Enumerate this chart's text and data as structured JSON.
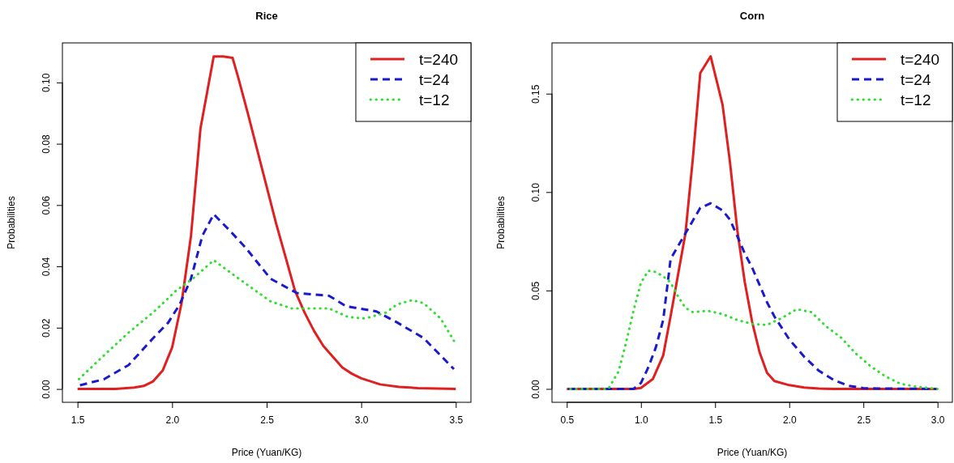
{
  "chart_data": [
    {
      "type": "line",
      "title": "Rice",
      "xlabel": "Price (Yuan/KG)",
      "ylabel": "Probabilities",
      "xlim": [
        1.42,
        3.58
      ],
      "ylim": [
        -0.00434,
        0.1129
      ],
      "xticks": [
        1.5,
        {
          "value": 2,
          "label": "2.0"
        },
        2.5,
        {
          "value": 3,
          "label": "3.0"
        },
        3.5
      ],
      "yticks": [
        {
          "value": 0,
          "label": "0.00"
        },
        {
          "value": 0.02,
          "label": "0.02"
        },
        {
          "value": 0.04,
          "label": "0.04"
        },
        {
          "value": 0.06,
          "label": "0.06"
        },
        {
          "value": 0.08,
          "label": "0.08"
        },
        {
          "value": 0.1,
          "label": "0.10"
        }
      ],
      "legend": "top right",
      "series": [
        {
          "name": "t=240",
          "color": "#e02020",
          "line_style": "solid",
          "x": [
            1.5,
            1.6,
            1.7,
            1.8,
            1.85,
            1.9,
            1.95,
            2.0,
            2.05,
            2.1,
            2.15,
            2.22,
            2.27,
            2.32,
            2.35,
            2.4,
            2.45,
            2.5,
            2.55,
            2.6,
            2.65,
            2.7,
            2.75,
            2.8,
            2.85,
            2.9,
            2.95,
            3.0,
            3.1,
            3.2,
            3.3,
            3.5
          ],
          "values": [
            0,
            0,
            0,
            0.0005,
            0.001,
            0.0025,
            0.006,
            0.0135,
            0.028,
            0.05,
            0.085,
            0.1085,
            0.1085,
            0.108,
            0.1015,
            0.09,
            0.078,
            0.066,
            0.054,
            0.043,
            0.032,
            0.025,
            0.019,
            0.014,
            0.0105,
            0.007,
            0.005,
            0.0035,
            0.0015,
            0.0007,
            0.0003,
            0
          ]
        },
        {
          "name": "t=24",
          "color": "#1a1acd",
          "line_style": "dashed",
          "x": [
            1.5,
            1.64,
            1.77,
            1.9,
            1.98,
            2.04,
            2.1,
            2.16,
            2.22,
            2.3,
            2.39,
            2.52,
            2.66,
            2.83,
            2.92,
            3.08,
            3.19,
            3.33,
            3.49
          ],
          "values": [
            0.001,
            0.0032,
            0.0078,
            0.0166,
            0.0217,
            0.0276,
            0.036,
            0.05,
            0.057,
            0.052,
            0.046,
            0.036,
            0.0313,
            0.0304,
            0.027,
            0.0253,
            0.0217,
            0.0166,
            0.0065
          ]
        },
        {
          "name": "t=12",
          "color": "#33dd33",
          "line_style": "dotted",
          "x": [
            1.5,
            1.64,
            1.77,
            1.9,
            2.02,
            2.11,
            2.22,
            2.33,
            2.42,
            2.52,
            2.63,
            2.83,
            2.93,
            3.02,
            3.13,
            3.19,
            3.27,
            3.33,
            3.42,
            3.49
          ],
          "values": [
            0.0028,
            0.011,
            0.0184,
            0.025,
            0.032,
            0.036,
            0.042,
            0.037,
            0.033,
            0.0286,
            0.0263,
            0.0263,
            0.0235,
            0.023,
            0.0249,
            0.0276,
            0.029,
            0.028,
            0.023,
            0.0157
          ]
        }
      ]
    },
    {
      "type": "line",
      "title": "Corn",
      "xlabel": "Price (Yuan/KG)",
      "ylabel": "Probabilities",
      "xlim": [
        0.4,
        3.1
      ],
      "ylim": [
        -0.0068,
        0.1758
      ],
      "xticks": [
        0.5,
        {
          "value": 1,
          "label": "1.0"
        },
        1.5,
        {
          "value": 2,
          "label": "2.0"
        },
        2.5,
        {
          "value": 3,
          "label": "3.0"
        }
      ],
      "yticks": [
        {
          "value": 0,
          "label": "0.00"
        },
        {
          "value": 0.05,
          "label": "0.05"
        },
        {
          "value": 0.1,
          "label": "0.10"
        },
        {
          "value": 0.15,
          "label": "0.15"
        }
      ],
      "legend": "top right",
      "series": [
        {
          "name": "t=240",
          "color": "#e02020",
          "line_style": "solid",
          "x": [
            0.5,
            0.95,
            1.0,
            1.08,
            1.15,
            1.2,
            1.3,
            1.35,
            1.4,
            1.47,
            1.55,
            1.6,
            1.65,
            1.7,
            1.75,
            1.8,
            1.85,
            1.9,
            2.0,
            2.1,
            2.2,
            2.3,
            3.0
          ],
          "values": [
            0,
            0,
            0.0005,
            0.005,
            0.017,
            0.037,
            0.079,
            0.117,
            0.1605,
            0.169,
            0.1445,
            0.1154,
            0.0805,
            0.0543,
            0.034,
            0.0186,
            0.0082,
            0.004,
            0.0019,
            0.0007,
            0.0002,
            0,
            0
          ]
        },
        {
          "name": "t=24",
          "color": "#1a1acd",
          "line_style": "dashed",
          "x": [
            0.5,
            0.95,
            1.0,
            1.05,
            1.1,
            1.15,
            1.2,
            1.25,
            1.3,
            1.4,
            1.47,
            1.55,
            1.6,
            1.65,
            1.7,
            1.75,
            1.8,
            1.85,
            1.9,
            2.0,
            2.1,
            2.2,
            2.3,
            2.4,
            2.5,
            2.6,
            3.0
          ],
          "values": [
            0,
            0,
            0.003,
            0.011,
            0.021,
            0.035,
            0.066,
            0.0725,
            0.079,
            0.092,
            0.0943,
            0.0907,
            0.086,
            0.0776,
            0.0688,
            0.0616,
            0.0528,
            0.044,
            0.0368,
            0.0252,
            0.0164,
            0.0092,
            0.0045,
            0.0016,
            0.0004,
            0.0002,
            0
          ]
        },
        {
          "name": "t=12",
          "color": "#33dd33",
          "line_style": "dotted",
          "x": [
            0.5,
            0.78,
            0.8,
            0.85,
            0.9,
            0.95,
            1.0,
            1.05,
            1.1,
            1.15,
            1.2,
            1.25,
            1.3,
            1.35,
            1.45,
            1.55,
            1.65,
            1.75,
            1.85,
            1.95,
            2.05,
            2.15,
            2.25,
            2.35,
            2.45,
            2.55,
            2.65,
            2.75,
            2.85,
            3.0
          ],
          "values": [
            0,
            0,
            0.0026,
            0.009,
            0.0237,
            0.0397,
            0.054,
            0.06,
            0.0594,
            0.0572,
            0.054,
            0.047,
            0.0412,
            0.039,
            0.0397,
            0.038,
            0.035,
            0.033,
            0.0325,
            0.036,
            0.0405,
            0.039,
            0.0317,
            0.026,
            0.0179,
            0.0114,
            0.0063,
            0.0026,
            0.0012,
            0
          ]
        }
      ]
    }
  ]
}
